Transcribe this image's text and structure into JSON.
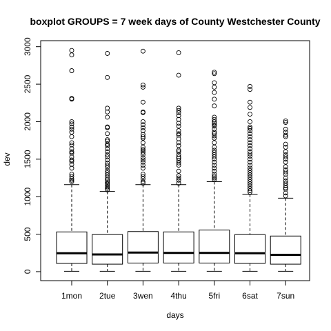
{
  "chart_data": {
    "type": "boxplot",
    "title": "boxplot GROUPS = 7 week days of County Westchester County",
    "xlabel": "days",
    "ylabel": "dev",
    "ylim": [
      -120,
      3080
    ],
    "yticks": [
      0,
      500,
      1000,
      1500,
      2000,
      2500,
      3000
    ],
    "grid": false,
    "categories": [
      "1mon",
      "2tue",
      "3wen",
      "4thu",
      "5fri",
      "6sat",
      "7sun"
    ],
    "boxes": [
      {
        "name": "1mon",
        "whisker_low": 5,
        "q1": 110,
        "median": 245,
        "q3": 530,
        "whisker_high": 1160,
        "outliers": [
          2950,
          2890,
          2680,
          2310,
          2300,
          2000,
          1970,
          1930,
          1900,
          1860,
          1800,
          1720,
          1690,
          1640,
          1600,
          1580,
          1530,
          1490,
          1470,
          1430,
          1380,
          1300,
          1270,
          1240,
          1220,
          1200
        ]
      },
      {
        "name": "2tue",
        "whisker_low": 5,
        "q1": 100,
        "median": 230,
        "q3": 495,
        "whisker_high": 1070,
        "outliers": [
          2910,
          2590,
          2180,
          2130,
          2060,
          1930,
          1920,
          1840,
          1760,
          1740,
          1700,
          1680,
          1640,
          1600,
          1560,
          1530,
          1490,
          1450,
          1420,
          1390,
          1350,
          1320,
          1290,
          1260,
          1230,
          1210,
          1190,
          1170,
          1150,
          1130,
          1110,
          1090
        ]
      },
      {
        "name": "3wen",
        "whisker_low": 5,
        "q1": 115,
        "median": 255,
        "q3": 535,
        "whisker_high": 1160,
        "outliers": [
          2940,
          2490,
          2460,
          2260,
          2130,
          2120,
          2000,
          1960,
          1920,
          1880,
          1830,
          1800,
          1780,
          1720,
          1660,
          1630,
          1610,
          1590,
          1560,
          1520,
          1490,
          1460,
          1420,
          1380,
          1300,
          1270,
          1240,
          1200,
          1180
        ]
      },
      {
        "name": "4thu",
        "whisker_low": 5,
        "q1": 115,
        "median": 250,
        "q3": 530,
        "whisker_high": 1160,
        "outliers": [
          2920,
          2620,
          2180,
          2150,
          2120,
          2080,
          2030,
          1980,
          1940,
          1880,
          1840,
          1820,
          1770,
          1720,
          1680,
          1620,
          1600,
          1560,
          1530,
          1510,
          1480,
          1450,
          1420,
          1340,
          1280,
          1250,
          1220,
          1180
        ]
      },
      {
        "name": "5fri",
        "whisker_low": 5,
        "q1": 115,
        "median": 250,
        "q3": 555,
        "whisker_high": 1200,
        "outliers": [
          2660,
          2640,
          2520,
          2460,
          2390,
          2300,
          2210,
          2060,
          2030,
          2000,
          1980,
          1960,
          1940,
          1900,
          1860,
          1840,
          1810,
          1780,
          1720,
          1660,
          1620,
          1590,
          1560,
          1530,
          1500,
          1460,
          1420,
          1380,
          1340,
          1300,
          1270,
          1250,
          1230
        ]
      },
      {
        "name": "6sat",
        "whisker_low": 5,
        "q1": 110,
        "median": 245,
        "q3": 495,
        "whisker_high": 1030,
        "outliers": [
          2470,
          2430,
          2260,
          2190,
          2100,
          2000,
          1930,
          1910,
          1880,
          1840,
          1800,
          1760,
          1720,
          1680,
          1640,
          1600,
          1570,
          1540,
          1500,
          1460,
          1420,
          1380,
          1350,
          1320,
          1290,
          1260,
          1230,
          1200,
          1170,
          1140,
          1110,
          1080,
          1060
        ]
      },
      {
        "name": "7sun",
        "whisker_low": 5,
        "q1": 100,
        "median": 225,
        "q3": 475,
        "whisker_high": 980,
        "outliers": [
          2010,
          1990,
          1900,
          1860,
          1820,
          1800,
          1700,
          1660,
          1600,
          1560,
          1530,
          1500,
          1460,
          1400,
          1360,
          1330,
          1300,
          1250,
          1210,
          1180,
          1150,
          1120,
          1100,
          1050,
          1010
        ]
      }
    ]
  }
}
